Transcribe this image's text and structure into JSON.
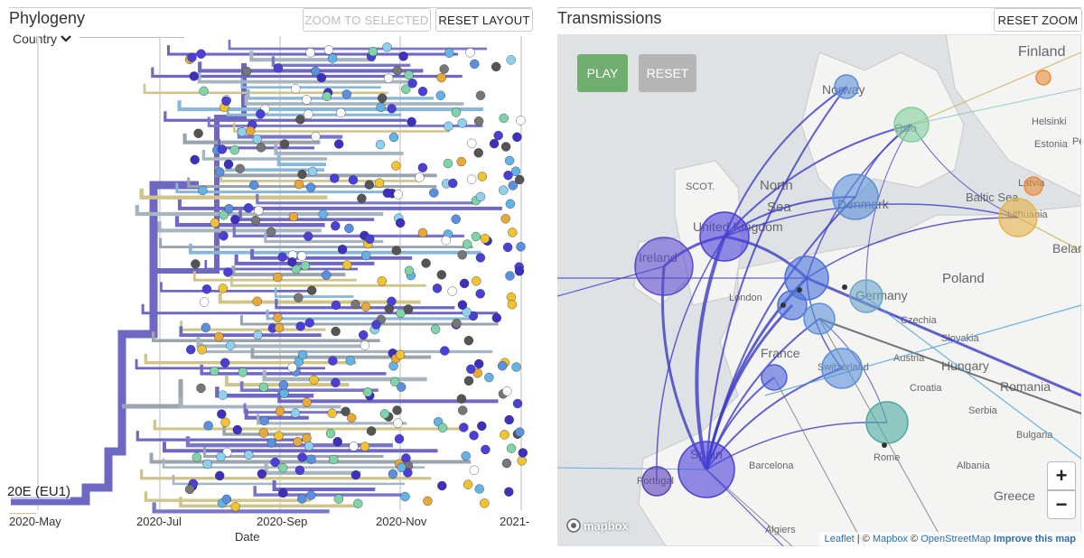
{
  "phylogeny": {
    "title": "Phylogeny",
    "zoom_to_selected": "ZOOM TO SELECTED",
    "reset_layout": "RESET LAYOUT",
    "color_by": "Country",
    "clade_label": "20E (EU1)",
    "axis_label": "Date",
    "date_ticks": [
      "2020-May",
      "2020-Jul",
      "2020-Sep",
      "2020-Nov",
      "2021-"
    ]
  },
  "transmissions": {
    "title": "Transmissions",
    "reset_zoom": "RESET ZOOM",
    "play": "PLAY",
    "reset": "RESET",
    "zoom_in": "+",
    "zoom_out": "−",
    "map_labels": [
      "Finland",
      "Norway",
      "Oslo",
      "Helsinki",
      "Estonia",
      "Pete",
      "SCOT.",
      "North",
      "Sea",
      "Latvia",
      "Denmark",
      "Baltic Sea",
      "Lithuania",
      "United Kingdom",
      "Ireland",
      "Belaru",
      "London",
      "Poland",
      "Germany",
      "Czechia",
      "Slovakia",
      "France",
      "Switzerland",
      "Austria",
      "Hungary",
      "Romania",
      "Croatia",
      "Serbia",
      "Bulgaria",
      "Barcelona",
      "Rome",
      "Albania",
      "Greece",
      "Portugal",
      "Spain",
      "Algiers"
    ],
    "attribution": {
      "leaflet": "Leaflet",
      "sep1": " | © ",
      "mapbox": "Mapbox",
      "sep2": " © ",
      "osm": "OpenStreetMap",
      "improve": "Improve this map"
    },
    "logo": "mapbox"
  },
  "colors": {
    "play_button": "#6fae6f",
    "reset_button": "#b5b5b5",
    "transmission_line": "#3b3cc4",
    "link": "#2a6fb0"
  }
}
